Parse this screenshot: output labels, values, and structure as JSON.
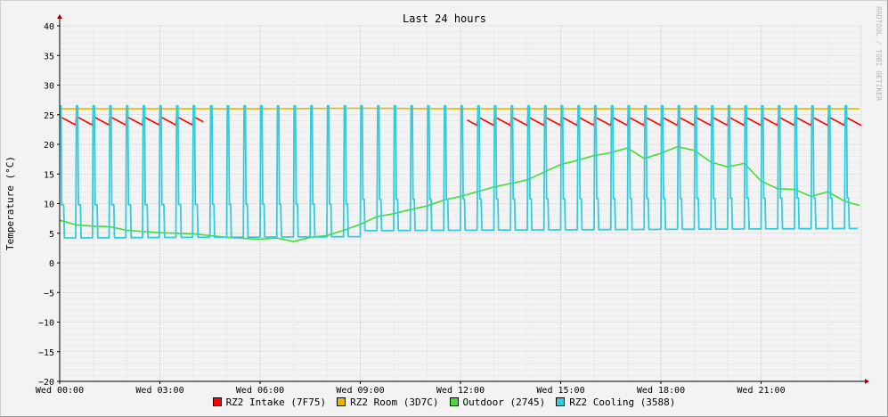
{
  "chart_data": {
    "type": "line",
    "title": "Last 24 hours",
    "ylabel": "Temperature (°C)",
    "ylim": [
      -20,
      40
    ],
    "y_ticks": [
      40,
      35,
      30,
      25,
      20,
      15,
      10,
      5,
      0,
      -5,
      -10,
      -15,
      -20
    ],
    "x_ticks": [
      "Wed 00:00",
      "Wed 03:00",
      "Wed 06:00",
      "Wed 09:00",
      "Wed 12:00",
      "Wed 15:00",
      "Wed 18:00",
      "Wed 21:00"
    ],
    "x_range_hours": [
      0,
      24
    ],
    "grid": true,
    "legend_position": "bottom",
    "watermark": "RRDTOOL / TOBI OETIKER",
    "series": [
      {
        "name": "RZ2 Intake (7F75)",
        "color": "#ff0000",
        "x": [
          0,
          4.3,
          4.4,
          8,
          12,
          16,
          20,
          24
        ],
        "y": [
          24.0,
          23.8,
          null,
          null,
          23.5,
          23.5,
          23.4,
          23.3
        ],
        "pattern": "sawtooth",
        "low": 23.2,
        "high": 24.7,
        "period_h": 0.5,
        "gap_hours": [
          [
            4.3,
            12.2
          ]
        ]
      },
      {
        "name": "RZ2 Room (3D7C)",
        "color": "#e5b800",
        "x": [
          0,
          3,
          6,
          9,
          12,
          15,
          18,
          21,
          24
        ],
        "y": [
          26.0,
          26.0,
          26.0,
          26.1,
          26.0,
          26.0,
          26.0,
          26.0,
          26.0
        ]
      },
      {
        "name": "Outdoor (2745)",
        "color": "#44dd33",
        "x": [
          0,
          0.5,
          1,
          1.5,
          2,
          3,
          4,
          5,
          6,
          6.5,
          7,
          7.5,
          8,
          8.5,
          9,
          9.5,
          10,
          10.5,
          11,
          11.5,
          12,
          12.5,
          13,
          13.5,
          14,
          14.5,
          15,
          15.5,
          16,
          16.5,
          17,
          17.5,
          18,
          18.5,
          19,
          19.5,
          20,
          20.5,
          21,
          21.5,
          22,
          22.5,
          23,
          23.5,
          24
        ],
        "y": [
          7.2,
          6.4,
          6.2,
          6.1,
          5.5,
          5.1,
          4.9,
          4.3,
          4.0,
          4.2,
          3.6,
          4.3,
          4.6,
          5.5,
          6.5,
          7.8,
          8.3,
          9.0,
          9.6,
          10.6,
          11.2,
          12.0,
          12.8,
          13.4,
          14.0,
          15.3,
          16.6,
          17.3,
          18.1,
          18.6,
          19.4,
          17.6,
          18.5,
          19.6,
          19.0,
          17.0,
          16.2,
          16.8,
          13.8,
          12.5,
          12.4,
          11.2,
          12.0,
          10.4,
          9.6
        ]
      },
      {
        "name": "RZ2 Cooling (3588)",
        "color": "#33ccdd",
        "x": [
          0,
          24
        ],
        "y": [
          5.0,
          5.0
        ],
        "pattern": "spikes",
        "base_start": 4.2,
        "base_end": 4.8,
        "peak": 26.5,
        "spike_period_h": 0.5
      }
    ]
  }
}
